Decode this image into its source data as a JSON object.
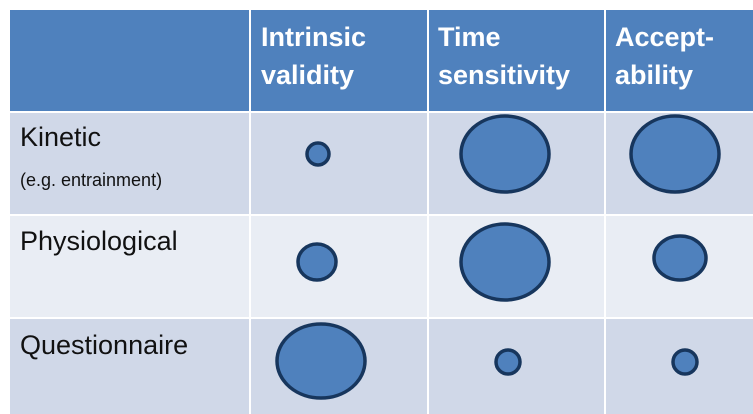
{
  "table": {
    "columns": [
      [
        "Intrinsic",
        "validity"
      ],
      [
        "Time",
        "sensitivity"
      ],
      [
        "Accept-",
        "ability"
      ]
    ],
    "rows": [
      {
        "label": "Kinetic",
        "note": "(e.g. entrainment)"
      },
      {
        "label": "Physiological"
      },
      {
        "label": "Questionnaire"
      }
    ]
  }
}
